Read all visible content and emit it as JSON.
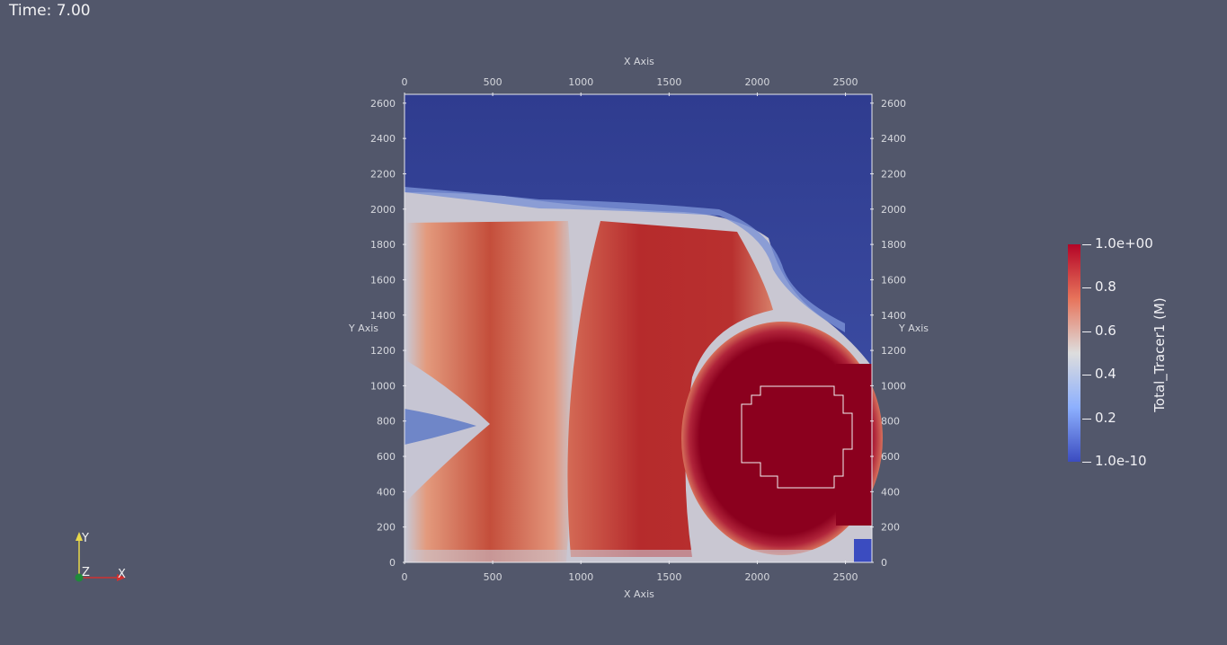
{
  "time_label": "Time: 7.00",
  "plot": {
    "x_axis_title_top": "X Axis",
    "x_axis_title_bottom": "X Axis",
    "y_axis_title_left": "Y Axis",
    "y_axis_title_right": "Y Axis",
    "x_ticks": [
      "0",
      "500",
      "1000",
      "1500",
      "2000",
      "2500"
    ],
    "y_ticks": [
      "0",
      "200",
      "400",
      "600",
      "800",
      "1000",
      "1200",
      "1400",
      "1600",
      "1800",
      "2000",
      "2200",
      "2400",
      "2600"
    ],
    "x_range": [
      0,
      2650
    ],
    "y_range": [
      0,
      2650
    ]
  },
  "colorbar": {
    "title": "Total_Tracer1 (M)",
    "labels": [
      "1.0e+00",
      "0.8",
      "0.6",
      "0.4",
      "0.2",
      "1.0e-10"
    ],
    "colors": {
      "high": "#b40426",
      "mid": "#dddddd",
      "low": "#3b4cc0"
    }
  },
  "orientation": {
    "y_label": "Y",
    "z_label": "Z",
    "x_label": "X"
  },
  "colors": {
    "background": "#52576b",
    "top_region": "#2f3c8f",
    "dark_red": "#8b001e"
  }
}
